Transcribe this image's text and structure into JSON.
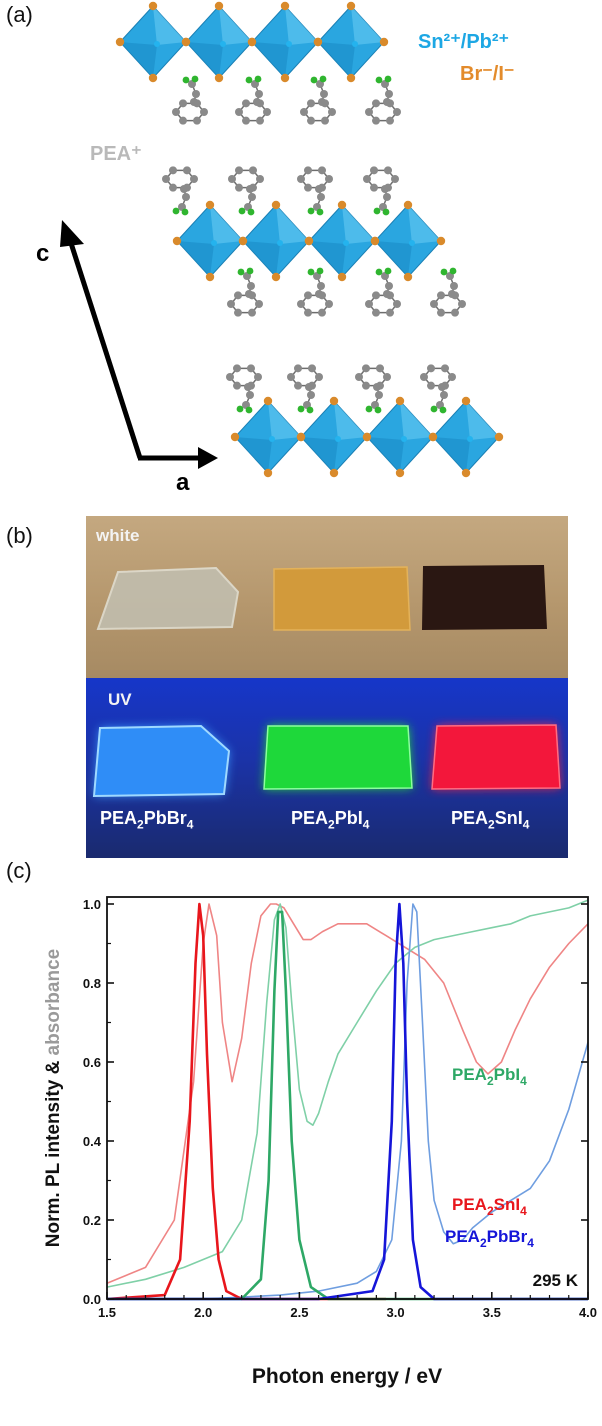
{
  "panel_a": {
    "label": "(a)",
    "legend_metal": "Sn²⁺/Pb²⁺",
    "legend_halide": "Br⁻/I⁻",
    "legend_organic": "PEA⁺",
    "axis_c": "c",
    "axis_a": "a",
    "colors": {
      "octahedron": "#2aa6e0",
      "halide": "#d98a2b",
      "carbon": "#8a8a8a",
      "nitrogen": "#2fb52f",
      "metal_text": "#1da7e4",
      "halide_text": "#e38b2b",
      "organic_text": "#b9b9b9"
    }
  },
  "panel_b": {
    "label": "(b)",
    "white_label": "white",
    "uv_label": "UV",
    "samples": [
      {
        "name_base": "PEA",
        "sub1": "2",
        "mid": "PbBr",
        "sub2": "4"
      },
      {
        "name_base": "PEA",
        "sub1": "2",
        "mid": "PbI",
        "sub2": "4"
      },
      {
        "name_base": "PEA",
        "sub1": "2",
        "mid": "SnI",
        "sub2": "4"
      }
    ]
  },
  "panel_c": {
    "label": "(c)",
    "ylabel_part1": "Norm. PL intensity & ",
    "ylabel_part2": "absorbance",
    "xlabel": "Photon energy / eV",
    "temperature": "295 K",
    "series_labels": {
      "pbi4": {
        "base": "PEA",
        "sub1": "2",
        "mid": "PbI",
        "sub2": "4",
        "color": "#2ea866"
      },
      "sni4": {
        "base": "PEA",
        "sub1": "2",
        "mid": "SnI",
        "sub2": "4",
        "color": "#e8161c"
      },
      "pbbr4": {
        "base": "PEA",
        "sub1": "2",
        "mid": "PbBr",
        "sub2": "4",
        "color": "#1515d8"
      }
    }
  },
  "chart_data": {
    "type": "line",
    "title": "",
    "xlabel": "Photon energy / eV",
    "ylabel": "Norm. PL intensity & absorbance",
    "xlim": [
      1.5,
      4.0
    ],
    "ylim": [
      0.0,
      1.05
    ],
    "xticks": [
      1.5,
      2.0,
      2.5,
      3.0,
      3.5,
      4.0
    ],
    "xtick_labels": [
      "1.5",
      "2.0",
      "2.5",
      "3.0",
      "3.5",
      "4.0"
    ],
    "yticks": [
      0.0,
      0.2,
      0.4,
      0.6,
      0.8,
      1.0
    ],
    "ytick_labels": [
      "0.0",
      "0.2",
      "0.4",
      "0.6",
      "0.8",
      "1.0"
    ],
    "series": [
      {
        "name": "PEA2SnI4",
        "kind": "absorbance",
        "color": "#ef8585",
        "width": 1.6,
        "x": [
          1.5,
          1.7,
          1.85,
          1.95,
          2.0,
          2.03,
          2.07,
          2.1,
          2.15,
          2.2,
          2.25,
          2.3,
          2.35,
          2.38,
          2.42,
          2.47,
          2.52,
          2.56,
          2.62,
          2.7,
          2.8,
          2.85,
          2.95,
          3.05,
          3.15,
          3.25,
          3.35,
          3.42,
          3.48,
          3.55,
          3.62,
          3.7,
          3.8,
          3.9,
          4.0
        ],
        "y": [
          0.04,
          0.08,
          0.2,
          0.55,
          0.9,
          1.0,
          0.92,
          0.7,
          0.55,
          0.66,
          0.85,
          0.97,
          1.0,
          1.0,
          0.99,
          0.95,
          0.91,
          0.91,
          0.93,
          0.95,
          0.95,
          0.95,
          0.92,
          0.89,
          0.86,
          0.8,
          0.68,
          0.6,
          0.57,
          0.6,
          0.68,
          0.76,
          0.84,
          0.9,
          0.95
        ]
      },
      {
        "name": "PEA2PbI4",
        "kind": "absorbance",
        "color": "#7fd0a7",
        "width": 1.6,
        "x": [
          1.5,
          1.7,
          1.9,
          2.1,
          2.2,
          2.28,
          2.33,
          2.37,
          2.4,
          2.43,
          2.46,
          2.5,
          2.54,
          2.57,
          2.6,
          2.65,
          2.7,
          2.8,
          2.9,
          3.0,
          3.1,
          3.2,
          3.3,
          3.4,
          3.5,
          3.6,
          3.7,
          3.8,
          3.9,
          4.0
        ],
        "y": [
          0.03,
          0.05,
          0.08,
          0.12,
          0.2,
          0.42,
          0.75,
          0.96,
          1.0,
          0.94,
          0.75,
          0.53,
          0.45,
          0.44,
          0.47,
          0.55,
          0.62,
          0.7,
          0.78,
          0.85,
          0.89,
          0.91,
          0.92,
          0.93,
          0.94,
          0.95,
          0.97,
          0.98,
          0.99,
          1.01
        ]
      },
      {
        "name": "PEA2PbBr4",
        "kind": "absorbance",
        "color": "#6f9ee0",
        "width": 1.6,
        "x": [
          1.5,
          2.0,
          2.4,
          2.6,
          2.8,
          2.9,
          2.98,
          3.03,
          3.06,
          3.09,
          3.11,
          3.14,
          3.17,
          3.2,
          3.25,
          3.3,
          3.35,
          3.4,
          3.5,
          3.6,
          3.7,
          3.8,
          3.9,
          4.0
        ],
        "y": [
          0.0,
          0.0,
          0.01,
          0.02,
          0.04,
          0.07,
          0.15,
          0.4,
          0.8,
          1.0,
          0.98,
          0.7,
          0.4,
          0.25,
          0.17,
          0.14,
          0.15,
          0.18,
          0.22,
          0.25,
          0.28,
          0.35,
          0.48,
          0.65
        ]
      },
      {
        "name": "PEA2SnI4 PL",
        "kind": "pl",
        "color": "#e8161c",
        "width": 2.6,
        "x": [
          1.5,
          1.8,
          1.88,
          1.93,
          1.96,
          1.98,
          2.0,
          2.02,
          2.05,
          2.08,
          2.12,
          2.2,
          2.5,
          2.95
        ],
        "y": [
          0.0,
          0.01,
          0.1,
          0.45,
          0.85,
          1.0,
          0.92,
          0.62,
          0.28,
          0.1,
          0.02,
          0.0,
          0.0,
          0.0
        ]
      },
      {
        "name": "PEA2PbI4 PL",
        "kind": "pl",
        "color": "#2ea866",
        "width": 2.6,
        "x": [
          1.5,
          2.2,
          2.3,
          2.34,
          2.37,
          2.39,
          2.41,
          2.43,
          2.46,
          2.5,
          2.56,
          2.65,
          3.0,
          4.0
        ],
        "y": [
          0.0,
          0.0,
          0.05,
          0.3,
          0.78,
          0.98,
          0.98,
          0.78,
          0.4,
          0.15,
          0.03,
          0.0,
          0.0,
          0.0
        ]
      },
      {
        "name": "PEA2PbBr4 PL",
        "kind": "pl",
        "color": "#1515d8",
        "width": 2.6,
        "x": [
          1.5,
          2.6,
          2.88,
          2.94,
          2.98,
          3.0,
          3.02,
          3.04,
          3.06,
          3.09,
          3.13,
          3.2,
          4.0
        ],
        "y": [
          0.0,
          0.0,
          0.02,
          0.1,
          0.45,
          0.85,
          1.0,
          0.85,
          0.5,
          0.15,
          0.03,
          0.0,
          0.0
        ]
      }
    ]
  }
}
